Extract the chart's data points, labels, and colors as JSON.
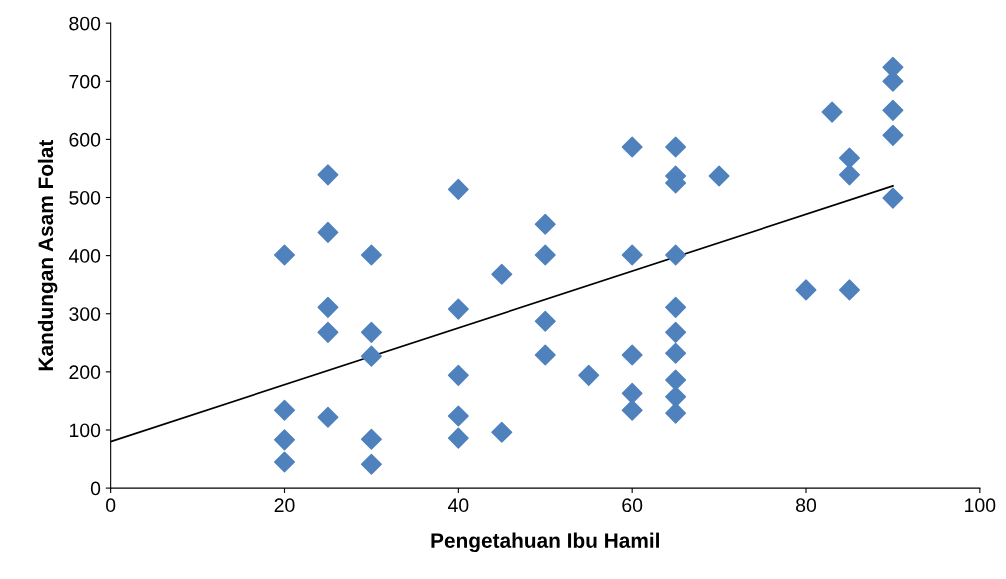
{
  "chart_data": {
    "type": "scatter",
    "xlabel": "Pengetahuan Ibu Hamil",
    "ylabel": "Kandungan Asam Folat",
    "xlim": [
      0,
      100
    ],
    "ylim": [
      0,
      800
    ],
    "xticks": [
      0,
      20,
      40,
      60,
      80,
      100
    ],
    "yticks": [
      0,
      100,
      200,
      300,
      400,
      500,
      600,
      700,
      800
    ],
    "grid": false,
    "legend": false,
    "marker": "diamond",
    "series": [
      {
        "color": "#4f81bd",
        "x": [
          20,
          20,
          20,
          20,
          25,
          25,
          25,
          25,
          25,
          30,
          30,
          30,
          30,
          30,
          40,
          40,
          40,
          40,
          40,
          45,
          45,
          50,
          50,
          50,
          50,
          55,
          60,
          60,
          60,
          60,
          60,
          65,
          65,
          65,
          65,
          65,
          65,
          65,
          65,
          65,
          65,
          70,
          80,
          83,
          85,
          85,
          85,
          90,
          90,
          90,
          90,
          90
        ],
        "values": [
          401,
          134,
          83,
          45,
          539,
          440,
          311,
          268,
          122,
          401,
          268,
          227,
          84,
          41,
          514,
          308,
          194,
          124,
          86,
          368,
          96,
          454,
          401,
          287,
          229,
          194,
          587,
          401,
          229,
          163,
          134,
          587,
          537,
          525,
          401,
          311,
          268,
          232,
          186,
          157,
          129,
          537,
          341,
          647,
          568,
          539,
          341,
          724,
          700,
          650,
          607,
          499
        ]
      },
      {
        "type": "line",
        "color": "#000000",
        "x": [
          0,
          90
        ],
        "values": [
          80,
          520
        ],
        "marker": "none"
      }
    ]
  }
}
